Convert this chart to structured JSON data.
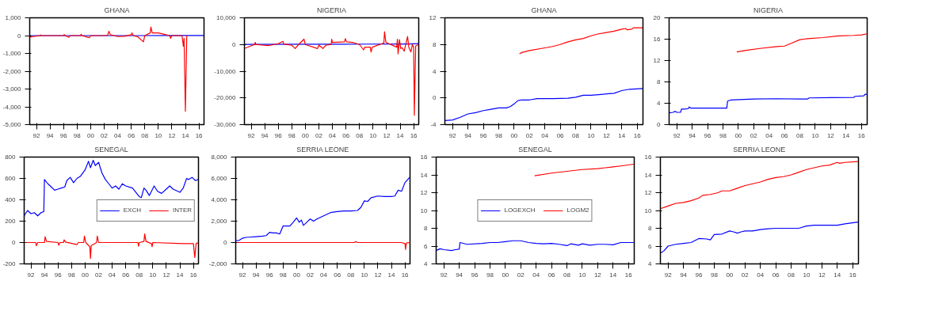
{
  "chart_data": [
    {
      "type": "line",
      "title": "GHANA",
      "xlim": [
        1991,
        2016.75
      ],
      "ylim": [
        -5000,
        1000
      ],
      "yticks": [
        {
          "value": -5000,
          "label": "-5,000"
        },
        {
          "value": -4000,
          "label": "-4,000"
        },
        {
          "value": -3000,
          "label": "-3,000"
        },
        {
          "value": -2000,
          "label": "-2,000"
        },
        {
          "value": -1000,
          "label": "-1,000"
        },
        0,
        {
          "value": 1000,
          "label": "1,000"
        }
      ],
      "xticks": [
        {
          "value": 1992,
          "label": "92"
        },
        {
          "value": 1994,
          "label": "94"
        },
        {
          "value": 1996,
          "label": "96"
        },
        {
          "value": 1998,
          "label": "98"
        },
        {
          "value": 2000,
          "label": "00"
        },
        {
          "value": 2002,
          "label": "02"
        },
        {
          "value": 2004,
          "label": "04"
        },
        {
          "value": 2006,
          "label": "06"
        },
        {
          "value": 2008,
          "label": "08"
        },
        {
          "value": 2010,
          "label": "10"
        },
        {
          "value": 2012,
          "label": "12"
        },
        {
          "value": 2014,
          "label": "14"
        },
        {
          "value": 2016,
          "label": "16"
        }
      ],
      "grid": false,
      "legend": false,
      "series": [
        {
          "color": "#0000ff",
          "x": [
            1991,
            1996,
            2001,
            2007,
            2012,
            2014,
            2016.75
          ],
          "values": [
            0,
            0,
            1,
            1,
            2,
            3,
            4
          ]
        },
        {
          "color": "#ff0000",
          "x": [
            1991,
            1992.5,
            1992.6,
            1992.7,
            1996,
            1996.1,
            1996.2,
            1996.8,
            1997,
            1998.5,
            1998.6,
            1998.7,
            1999.8,
            2000,
            2002.5,
            2002.7,
            2002.9,
            2003.5,
            2004,
            2005,
            2006,
            2006.1,
            2006.3,
            2007,
            2007.8,
            2008,
            2008.8,
            2008.9,
            2009.1,
            2010,
            2011,
            2011.7,
            2011.8,
            2012,
            2013.5,
            2013.7,
            2013.8,
            2014.0,
            2014.2
          ],
          "values": [
            -80,
            0,
            40,
            0,
            0,
            60,
            0,
            -100,
            0,
            0,
            80,
            0,
            -120,
            0,
            0,
            250,
            50,
            0,
            -50,
            -40,
            50,
            150,
            0,
            -80,
            -350,
            0,
            150,
            480,
            150,
            150,
            60,
            0,
            -150,
            0,
            0,
            -600,
            -150,
            -4250,
            0
          ]
        }
      ]
    },
    {
      "type": "line",
      "title": "NIGERIA",
      "xlim": [
        1991,
        2016.75
      ],
      "ylim": [
        -30000,
        10000
      ],
      "yticks": [
        {
          "value": -30000,
          "label": "-30,000"
        },
        {
          "value": -20000,
          "label": "-20,000"
        },
        {
          "value": -10000,
          "label": "-10,000"
        },
        0,
        {
          "value": 10000,
          "label": "10,000"
        }
      ],
      "xticks": [
        {
          "value": 1992,
          "label": "92"
        },
        {
          "value": 1994,
          "label": "94"
        },
        {
          "value": 1996,
          "label": "96"
        },
        {
          "value": 1998,
          "label": "98"
        },
        {
          "value": 2000,
          "label": "00"
        },
        {
          "value": 2002,
          "label": "02"
        },
        {
          "value": 2004,
          "label": "04"
        },
        {
          "value": 2006,
          "label": "06"
        },
        {
          "value": 2008,
          "label": "08"
        },
        {
          "value": 2010,
          "label": "10"
        },
        {
          "value": 2012,
          "label": "12"
        },
        {
          "value": 2014,
          "label": "14"
        },
        {
          "value": 2016,
          "label": "16"
        }
      ],
      "grid": false,
      "legend": false,
      "series": [
        {
          "color": "#0000ff",
          "x": [
            1991,
            1999,
            2005,
            2009,
            2015,
            2016.75
          ],
          "values": [
            9,
            90,
            130,
            150,
            200,
            305
          ]
        },
        {
          "color": "#ff0000",
          "x": [
            1991,
            1992.5,
            1992.6,
            1992.7,
            1994.5,
            1996,
            1996.7,
            1996.8,
            1998,
            1998.5,
            1999,
            1999.8,
            2000,
            2001.8,
            2002,
            2002.6,
            2003,
            2003.8,
            2003.9,
            2004,
            2005.8,
            2005.9,
            2006.1,
            2007,
            2008,
            2008.6,
            2008.8,
            2009.6,
            2009.7,
            2009.9,
            2011.6,
            2011.7,
            2011.9,
            2013.5,
            2013.6,
            2013.7,
            2013.9,
            2014.1,
            2014.3,
            2014.6,
            2014.9,
            2015.1,
            2015.3,
            2015.6,
            2015.8,
            2016.0,
            2016.1,
            2016.3,
            2016.75
          ],
          "values": [
            -1500,
            0,
            800,
            0,
            -400,
            300,
            1200,
            200,
            -300,
            -1500,
            0,
            2000,
            0,
            -1500,
            -200,
            -1500,
            -300,
            0,
            2000,
            800,
            1000,
            2200,
            1000,
            800,
            0,
            -2000,
            -1000,
            -1000,
            -2800,
            -1000,
            600,
            4800,
            800,
            -1000,
            2000,
            -3500,
            1800,
            -1500,
            -1200,
            -2500,
            800,
            3000,
            -1200,
            -2800,
            0,
            -1000,
            -26500,
            -500,
            0
          ]
        }
      ]
    },
    {
      "type": "line",
      "title": "GHANA",
      "xlim": [
        1991,
        2016.75
      ],
      "ylim": [
        -4,
        12
      ],
      "yticks": [
        -4,
        0,
        4,
        8,
        12
      ],
      "xticks": [
        {
          "value": 1992,
          "label": "92"
        },
        {
          "value": 1994,
          "label": "94"
        },
        {
          "value": 1996,
          "label": "96"
        },
        {
          "value": 1998,
          "label": "98"
        },
        {
          "value": 2000,
          "label": "00"
        },
        {
          "value": 2002,
          "label": "02"
        },
        {
          "value": 2004,
          "label": "04"
        },
        {
          "value": 2006,
          "label": "06"
        },
        {
          "value": 2008,
          "label": "08"
        },
        {
          "value": 2010,
          "label": "10"
        },
        {
          "value": 2012,
          "label": "12"
        },
        {
          "value": 2014,
          "label": "14"
        },
        {
          "value": 2016,
          "label": "16"
        }
      ],
      "grid": false,
      "legend": false,
      "series": [
        {
          "color": "#0000ff",
          "x": [
            1991,
            1992,
            1993,
            1994,
            1995,
            1996,
            1997,
            1998,
            1999,
            1999.5,
            2000,
            2000.5,
            2001,
            2002,
            2003,
            2005,
            2007,
            2008,
            2009,
            2010,
            2011,
            2012,
            2013,
            2014,
            2015,
            2016.7
          ],
          "values": [
            -3.4,
            -3.3,
            -2.9,
            -2.4,
            -2.2,
            -1.9,
            -1.7,
            -1.5,
            -1.5,
            -1.3,
            -0.9,
            -0.4,
            -0.3,
            -0.3,
            -0.1,
            -0.1,
            -0.05,
            0.1,
            0.4,
            0.4,
            0.5,
            0.6,
            0.7,
            1.1,
            1.3,
            1.4
          ]
        },
        {
          "color": "#ff0000",
          "x": [
            2000.7,
            2001,
            2002,
            2004,
            2005,
            2006,
            2007,
            2008,
            2009,
            2010,
            2011,
            2012,
            2013,
            2014,
            2014.5,
            2014.7,
            2015.3,
            2015.5,
            2016.7
          ],
          "values": [
            6.6,
            6.8,
            7.1,
            7.5,
            7.7,
            8.0,
            8.4,
            8.7,
            8.9,
            9.3,
            9.6,
            9.8,
            10.0,
            10.3,
            10.4,
            10.2,
            10.3,
            10.5,
            10.5
          ]
        }
      ]
    },
    {
      "type": "line",
      "title": "NIGERIA",
      "xlim": [
        1991,
        2016.75
      ],
      "ylim": [
        0,
        20
      ],
      "yticks": [
        0,
        4,
        8,
        12,
        16,
        20
      ],
      "xticks": [
        {
          "value": 1992,
          "label": "92"
        },
        {
          "value": 1994,
          "label": "94"
        },
        {
          "value": 1996,
          "label": "96"
        },
        {
          "value": 1998,
          "label": "98"
        },
        {
          "value": 2000,
          "label": "00"
        },
        {
          "value": 2002,
          "label": "02"
        },
        {
          "value": 2004,
          "label": "04"
        },
        {
          "value": 2006,
          "label": "06"
        },
        {
          "value": 2008,
          "label": "08"
        },
        {
          "value": 2010,
          "label": "10"
        },
        {
          "value": 2012,
          "label": "12"
        },
        {
          "value": 2014,
          "label": "14"
        },
        {
          "value": 2016,
          "label": "16"
        }
      ],
      "grid": false,
      "legend": false,
      "series": [
        {
          "color": "#0000ff",
          "x": [
            1991,
            1991.5,
            1991.8,
            1992,
            1992.5,
            1992.6,
            1993,
            1993.5,
            1993.6,
            1993.8,
            1998.5,
            1998.6,
            1999,
            2002,
            2005,
            2008,
            2009,
            2009.2,
            2012,
            2015,
            2015.2,
            2016.3,
            2016.5,
            2016.75
          ],
          "values": [
            2.2,
            2.3,
            2.5,
            2.3,
            2.3,
            2.9,
            2.9,
            3.0,
            3.3,
            3.1,
            3.1,
            4.4,
            4.6,
            4.8,
            4.85,
            4.8,
            4.8,
            5.0,
            5.05,
            5.1,
            5.3,
            5.4,
            5.7,
            5.7
          ]
        },
        {
          "color": "#ff0000",
          "x": [
            1999.8,
            2001,
            2003,
            2005,
            2006,
            2007,
            2008,
            2009,
            2011,
            2013,
            2015,
            2016,
            2016.75
          ],
          "values": [
            13.6,
            13.9,
            14.3,
            14.6,
            14.7,
            15.3,
            15.9,
            16.1,
            16.3,
            16.6,
            16.7,
            16.8,
            17.0
          ]
        }
      ]
    },
    {
      "type": "line",
      "title": "SENEGAL",
      "xlim": [
        1991,
        2016.75
      ],
      "ylim": [
        -200,
        800
      ],
      "yticks": [
        -200,
        0,
        200,
        400,
        600,
        800
      ],
      "xticks": [
        {
          "value": 1992,
          "label": "92"
        },
        {
          "value": 1994,
          "label": "94"
        },
        {
          "value": 1996,
          "label": "96"
        },
        {
          "value": 1998,
          "label": "98"
        },
        {
          "value": 2000,
          "label": "00"
        },
        {
          "value": 2002,
          "label": "02"
        },
        {
          "value": 2004,
          "label": "04"
        },
        {
          "value": 2006,
          "label": "06"
        },
        {
          "value": 2008,
          "label": "08"
        },
        {
          "value": 2010,
          "label": "10"
        },
        {
          "value": 2012,
          "label": "12"
        },
        {
          "value": 2014,
          "label": "14"
        },
        {
          "value": 2016,
          "label": "16"
        }
      ],
      "grid": false,
      "legend": "center right",
      "series": [
        {
          "name": "EXCH",
          "color": "#0000ff",
          "x": [
            1991,
            1991.5,
            1992,
            1992.5,
            1993,
            1993.5,
            1993.9,
            1994.0,
            1994.5,
            1995,
            1995.5,
            1996,
            1996.5,
            1997,
            1997.3,
            1997.8,
            1998.3,
            1998.8,
            1999.3,
            2000,
            2000.5,
            2000.8,
            2001.2,
            2001.5,
            2002,
            2002.5,
            2003,
            2003.5,
            2004,
            2004.5,
            2005,
            2005.5,
            2006,
            2007,
            2008,
            2008.3,
            2008.7,
            2009,
            2009.5,
            2010.2,
            2010.7,
            2011.3,
            2012,
            2012.5,
            2013,
            2014,
            2014.5,
            2015,
            2015.3,
            2015.8,
            2016.3,
            2016.7
          ],
          "values": [
            250,
            300,
            270,
            280,
            250,
            280,
            290,
            590,
            550,
            520,
            490,
            500,
            510,
            520,
            580,
            610,
            560,
            600,
            620,
            680,
            760,
            700,
            770,
            720,
            750,
            650,
            590,
            550,
            510,
            530,
            500,
            550,
            530,
            510,
            430,
            420,
            510,
            490,
            440,
            530,
            480,
            460,
            500,
            530,
            500,
            470,
            510,
            600,
            590,
            610,
            580,
            590
          ]
        },
        {
          "name": "INTER",
          "color": "#ff0000",
          "x": [
            1991,
            1992.7,
            1992.8,
            1993,
            1994,
            1994.1,
            1994.3,
            1996,
            1996.1,
            1996.3,
            1996.8,
            1996.9,
            1997.1,
            1998.8,
            1999,
            1999.8,
            1999.9,
            2000.1,
            2000.7,
            2000.8,
            2000.9,
            2001.7,
            2001.8,
            2002,
            2007.8,
            2007.9,
            2008,
            2008.7,
            2008.8,
            2009,
            2009.8,
            2009.9,
            2010,
            2014.5,
            2015.5,
            2016.0,
            2016.2,
            2016.4,
            2016.75
          ],
          "values": [
            0,
            0,
            -30,
            0,
            0,
            55,
            10,
            0,
            -25,
            0,
            0,
            25,
            5,
            -20,
            0,
            0,
            60,
            0,
            -40,
            -150,
            -30,
            0,
            60,
            0,
            0,
            -35,
            0,
            10,
            80,
            10,
            -10,
            -40,
            0,
            -10,
            -10,
            -10,
            -140,
            -10,
            0
          ]
        }
      ]
    },
    {
      "type": "line",
      "title": "SERRIA LEONE",
      "xlim": [
        1991,
        2016.75
      ],
      "ylim": [
        -2000,
        8000
      ],
      "yticks": [
        {
          "value": -2000,
          "label": "-2,000"
        },
        0,
        {
          "value": 2000,
          "label": "2,000"
        },
        {
          "value": 4000,
          "label": "4,000"
        },
        {
          "value": 6000,
          "label": "6,000"
        },
        {
          "value": 8000,
          "label": "8,000"
        }
      ],
      "xticks": [
        {
          "value": 1992,
          "label": "92"
        },
        {
          "value": 1994,
          "label": "94"
        },
        {
          "value": 1996,
          "label": "96"
        },
        {
          "value": 1998,
          "label": "98"
        },
        {
          "value": 2000,
          "label": "00"
        },
        {
          "value": 2002,
          "label": "02"
        },
        {
          "value": 2004,
          "label": "04"
        },
        {
          "value": 2006,
          "label": "06"
        },
        {
          "value": 2008,
          "label": "08"
        },
        {
          "value": 2010,
          "label": "10"
        },
        {
          "value": 2012,
          "label": "12"
        },
        {
          "value": 2014,
          "label": "14"
        },
        {
          "value": 2016,
          "label": "16"
        }
      ],
      "grid": false,
      "legend": false,
      "series": [
        {
          "color": "#0000ff",
          "x": [
            1991,
            1991.5,
            1992,
            1992.5,
            1993,
            1994,
            1995,
            1995.5,
            1996,
            1996.5,
            1997,
            1997.5,
            1998,
            1998.5,
            1999,
            1999.5,
            2000,
            2000.4,
            2000.7,
            2001,
            2001.5,
            2002,
            2002.5,
            2003,
            2004,
            2005,
            2006,
            2007,
            2008,
            2009,
            2009.5,
            2010,
            2010.5,
            2011,
            2012,
            2013,
            2014,
            2014.5,
            2015,
            2015.5,
            2016,
            2016.7
          ],
          "values": [
            180,
            200,
            400,
            480,
            500,
            550,
            600,
            650,
            950,
            900,
            900,
            800,
            1550,
            1550,
            1550,
            1900,
            2300,
            1900,
            2100,
            1600,
            1900,
            2200,
            2000,
            2200,
            2500,
            2800,
            2900,
            2950,
            2950,
            3000,
            3300,
            3900,
            3850,
            4200,
            4350,
            4300,
            4300,
            4350,
            4900,
            4800,
            5600,
            6100
          ]
        },
        {
          "color": "#ff0000",
          "x": [
            1991,
            2008.5,
            2008.7,
            2009,
            2015.5,
            2016,
            2016.1,
            2016.2,
            2016.75
          ],
          "values": [
            0,
            0,
            80,
            0,
            0,
            -100,
            -650,
            -50,
            0
          ]
        }
      ]
    },
    {
      "type": "line",
      "title": "SENEGAL",
      "xlim": [
        1991,
        2016.75
      ],
      "ylim": [
        4,
        16
      ],
      "yticks": [
        4,
        6,
        8,
        10,
        12,
        14,
        16
      ],
      "xticks": [
        {
          "value": 1992,
          "label": "92"
        },
        {
          "value": 1994,
          "label": "94"
        },
        {
          "value": 1996,
          "label": "96"
        },
        {
          "value": 1998,
          "label": "98"
        },
        {
          "value": 2000,
          "label": "00"
        },
        {
          "value": 2002,
          "label": "02"
        },
        {
          "value": 2004,
          "label": "04"
        },
        {
          "value": 2006,
          "label": "06"
        },
        {
          "value": 2008,
          "label": "08"
        },
        {
          "value": 2010,
          "label": "10"
        },
        {
          "value": 2012,
          "label": "12"
        },
        {
          "value": 2014,
          "label": "14"
        },
        {
          "value": 2016,
          "label": "16"
        }
      ],
      "grid": false,
      "legend": "center",
      "series": [
        {
          "name": "LOGEXCH",
          "color": "#0000ff",
          "x": [
            1991,
            1991.5,
            1992,
            1993,
            1993.5,
            1994,
            1994.1,
            1995,
            1997,
            1998,
            1999,
            2000,
            2001,
            2002,
            2003,
            2004,
            2005,
            2006,
            2007,
            2008,
            2008.5,
            2009.5,
            2010,
            2011,
            2012,
            2013,
            2014,
            2015,
            2016.7
          ],
          "values": [
            5.5,
            5.7,
            5.6,
            5.5,
            5.6,
            5.65,
            6.4,
            6.2,
            6.3,
            6.4,
            6.4,
            6.5,
            6.6,
            6.6,
            6.4,
            6.3,
            6.25,
            6.3,
            6.2,
            6.05,
            6.25,
            6.1,
            6.25,
            6.1,
            6.2,
            6.2,
            6.15,
            6.4,
            6.4
          ]
        },
        {
          "name": "LOGM2",
          "color": "#ff0000",
          "x": [
            2003.8,
            2006,
            2008,
            2010,
            2012,
            2014,
            2015,
            2016.7
          ],
          "values": [
            13.9,
            14.2,
            14.4,
            14.6,
            14.7,
            14.9,
            15.0,
            15.2
          ]
        }
      ]
    },
    {
      "type": "line",
      "title": "SERRIA LEONE",
      "xlim": [
        1991,
        2016.75
      ],
      "ylim": [
        4,
        16
      ],
      "yticks": [
        4,
        6,
        8,
        10,
        12,
        14,
        16
      ],
      "xticks": [
        {
          "value": 1992,
          "label": "92"
        },
        {
          "value": 1994,
          "label": "94"
        },
        {
          "value": 1996,
          "label": "96"
        },
        {
          "value": 1998,
          "label": "98"
        },
        {
          "value": 2000,
          "label": "00"
        },
        {
          "value": 2002,
          "label": "02"
        },
        {
          "value": 2004,
          "label": "04"
        },
        {
          "value": 2006,
          "label": "06"
        },
        {
          "value": 2008,
          "label": "08"
        },
        {
          "value": 2010,
          "label": "10"
        },
        {
          "value": 2012,
          "label": "12"
        },
        {
          "value": 2014,
          "label": "14"
        },
        {
          "value": 2016,
          "label": "16"
        }
      ],
      "grid": false,
      "legend": false,
      "series": [
        {
          "color": "#0000ff",
          "x": [
            1991,
            1991.5,
            1992,
            1993,
            1994,
            1995,
            1996,
            1997,
            1997.5,
            1998,
            1999,
            2000,
            2000.5,
            2001,
            2001.5,
            2002,
            2003,
            2004,
            2005,
            2006,
            2009,
            2010,
            2011,
            2014,
            2015,
            2016.7
          ],
          "values": [
            5.2,
            5.5,
            6.0,
            6.2,
            6.3,
            6.4,
            6.85,
            6.8,
            6.7,
            7.3,
            7.35,
            7.7,
            7.6,
            7.45,
            7.6,
            7.7,
            7.7,
            7.85,
            7.95,
            8.0,
            8.0,
            8.25,
            8.35,
            8.35,
            8.5,
            8.7
          ]
        },
        {
          "color": "#ff0000",
          "x": [
            1991,
            1992,
            1993,
            1994,
            1995,
            1996,
            1996.5,
            1997.5,
            1998.5,
            1999,
            2000,
            2001,
            2002,
            2003,
            2004,
            2005,
            2006,
            2007,
            2008,
            2009,
            2010,
            2011,
            2012,
            2013,
            2014,
            2014.3,
            2015,
            2016.7
          ],
          "values": [
            10.2,
            10.5,
            10.8,
            10.9,
            11.1,
            11.4,
            11.7,
            11.8,
            12.0,
            12.2,
            12.2,
            12.5,
            12.8,
            13.0,
            13.2,
            13.5,
            13.7,
            13.8,
            14.0,
            14.3,
            14.6,
            14.8,
            15.0,
            15.1,
            15.4,
            15.3,
            15.4,
            15.5
          ]
        }
      ]
    }
  ]
}
